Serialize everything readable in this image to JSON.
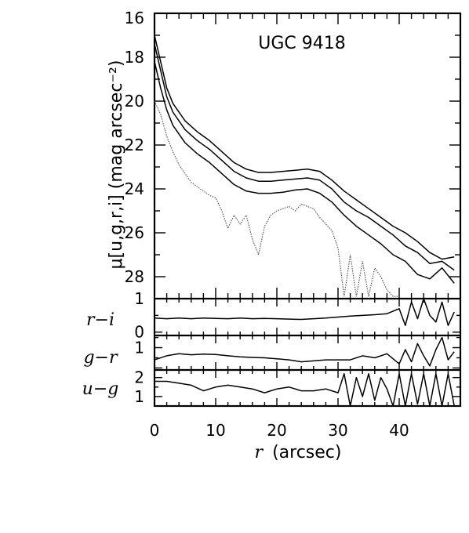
{
  "chart_data": {
    "type": "line",
    "title": "UGC 9418",
    "xlabel": "r (arcsec)",
    "xlabel_var": "r",
    "xlabel_unit": "(arcsec)",
    "xlim": [
      0,
      50
    ],
    "x_ticks": [
      "0",
      "10",
      "20",
      "30",
      "40"
    ],
    "panels": [
      {
        "ylabel": "μ[u,g,r,i] (mag arcsec⁻²)",
        "ylim": [
          29,
          16
        ],
        "y_ticks": [
          "16",
          "18",
          "20",
          "22",
          "24",
          "26",
          "28"
        ],
        "series": [
          {
            "band": "i",
            "style": "solid",
            "x": [
              0,
              1,
              2,
              3,
              5,
              7,
              9,
              11,
              13,
              15,
              17,
              19,
              21,
              23,
              25,
              27,
              29,
              31,
              33,
              35,
              37,
              39,
              41,
              43,
              45,
              47,
              49
            ],
            "values": [
              17.0,
              18.2,
              19.4,
              20.1,
              20.9,
              21.4,
              21.8,
              22.3,
              22.8,
              23.1,
              23.25,
              23.25,
              23.2,
              23.15,
              23.1,
              23.2,
              23.6,
              24.1,
              24.5,
              24.9,
              25.3,
              25.7,
              26.0,
              26.4,
              26.9,
              27.2,
              27.1
            ]
          },
          {
            "band": "r",
            "style": "solid",
            "x": [
              0,
              1,
              2,
              3,
              5,
              7,
              9,
              11,
              13,
              15,
              17,
              19,
              21,
              23,
              25,
              27,
              29,
              31,
              33,
              35,
              37,
              39,
              41,
              43,
              45,
              47,
              49
            ],
            "values": [
              17.4,
              18.6,
              19.8,
              20.5,
              21.3,
              21.8,
              22.2,
              22.7,
              23.2,
              23.5,
              23.65,
              23.65,
              23.6,
              23.55,
              23.5,
              23.6,
              24.0,
              24.6,
              25.0,
              25.3,
              25.7,
              26.1,
              26.6,
              26.9,
              27.4,
              27.3,
              27.7
            ]
          },
          {
            "band": "g",
            "style": "solid",
            "x": [
              0,
              1,
              2,
              3,
              5,
              7,
              9,
              11,
              13,
              15,
              17,
              19,
              21,
              23,
              25,
              27,
              29,
              31,
              33,
              35,
              37,
              39,
              41,
              43,
              45,
              47,
              49
            ],
            "values": [
              18.2,
              19.4,
              20.4,
              21.1,
              21.9,
              22.4,
              22.8,
              23.3,
              23.8,
              24.1,
              24.2,
              24.2,
              24.15,
              24.05,
              24.0,
              24.2,
              24.6,
              25.2,
              25.7,
              26.1,
              26.5,
              27.0,
              27.3,
              27.9,
              28.1,
              27.6,
              28.3
            ]
          },
          {
            "band": "u",
            "style": "dotted",
            "x": [
              0,
              1,
              2,
              3,
              4,
              5,
              6,
              7,
              8,
              9,
              10,
              11,
              12,
              13,
              14,
              15,
              16,
              17,
              18,
              19,
              20,
              21,
              22,
              23,
              24,
              25,
              26,
              27,
              28,
              29,
              30,
              31,
              32,
              33,
              34,
              35,
              36,
              37,
              38,
              39,
              40
            ],
            "values": [
              20.0,
              20.6,
              21.6,
              22.3,
              22.9,
              23.3,
              23.7,
              23.9,
              24.1,
              24.3,
              24.4,
              25.0,
              25.8,
              25.2,
              25.6,
              25.2,
              26.3,
              27.0,
              25.7,
              25.2,
              25.0,
              24.9,
              24.8,
              25.0,
              24.7,
              24.8,
              24.9,
              25.3,
              25.6,
              25.9,
              26.7,
              28.9,
              27.0,
              28.9,
              27.3,
              28.9,
              27.6,
              28.0,
              28.6,
              28.9,
              28.9
            ]
          }
        ]
      },
      {
        "ylabel": "r−i",
        "ylim": [
          -0.1,
          1.0
        ],
        "y_ticks": [
          "1",
          "0"
        ],
        "series": [
          {
            "name": "r-i",
            "x": [
              0,
              2,
              4,
              6,
              8,
              10,
              12,
              14,
              16,
              18,
              20,
              22,
              24,
              26,
              28,
              30,
              32,
              34,
              36,
              38,
              40,
              41,
              42,
              43,
              44,
              45,
              46,
              47,
              48,
              49
            ],
            "values": [
              0.42,
              0.4,
              0.42,
              0.4,
              0.42,
              0.41,
              0.4,
              0.42,
              0.4,
              0.41,
              0.4,
              0.39,
              0.38,
              0.4,
              0.42,
              0.45,
              0.48,
              0.5,
              0.52,
              0.55,
              0.7,
              0.2,
              0.9,
              0.4,
              1.0,
              0.5,
              0.3,
              0.9,
              0.2,
              0.6
            ]
          }
        ]
      },
      {
        "ylabel": "g−r",
        "ylim": [
          -0.1,
          1.6
        ],
        "y_ticks": [
          "1"
        ],
        "series": [
          {
            "name": "g-r",
            "x": [
              0,
              2,
              4,
              6,
              8,
              10,
              12,
              14,
              16,
              18,
              20,
              22,
              24,
              26,
              28,
              30,
              32,
              34,
              36,
              38,
              40,
              41,
              42,
              43,
              44,
              45,
              46,
              47,
              48,
              49
            ],
            "values": [
              0.4,
              0.6,
              0.7,
              0.65,
              0.68,
              0.66,
              0.6,
              0.55,
              0.52,
              0.5,
              0.45,
              0.4,
              0.3,
              0.35,
              0.4,
              0.4,
              0.4,
              0.6,
              0.5,
              0.7,
              0.2,
              0.9,
              0.3,
              1.2,
              0.6,
              0.1,
              0.9,
              1.5,
              0.4,
              0.8
            ]
          }
        ]
      },
      {
        "ylabel": "u−g",
        "ylim": [
          0.5,
          2.4
        ],
        "y_ticks": [
          "2",
          "1"
        ],
        "series": [
          {
            "name": "u-g",
            "x": [
              0,
              2,
              4,
              6,
              8,
              10,
              12,
              14,
              16,
              18,
              20,
              22,
              24,
              26,
              28,
              30,
              31,
              32,
              33,
              34,
              35,
              36,
              37,
              38,
              39,
              40,
              41,
              42,
              43,
              44,
              45,
              46,
              47,
              48,
              49
            ],
            "values": [
              1.8,
              1.8,
              1.7,
              1.6,
              1.3,
              1.5,
              1.6,
              1.5,
              1.4,
              1.2,
              1.4,
              1.5,
              1.3,
              1.3,
              1.4,
              1.2,
              2.2,
              0.5,
              2.0,
              1.0,
              2.2,
              0.8,
              2.0,
              1.4,
              0.5,
              2.2,
              0.5,
              2.2,
              0.6,
              2.2,
              0.5,
              2.2,
              0.5,
              2.2,
              0.5
            ]
          }
        ]
      }
    ]
  }
}
